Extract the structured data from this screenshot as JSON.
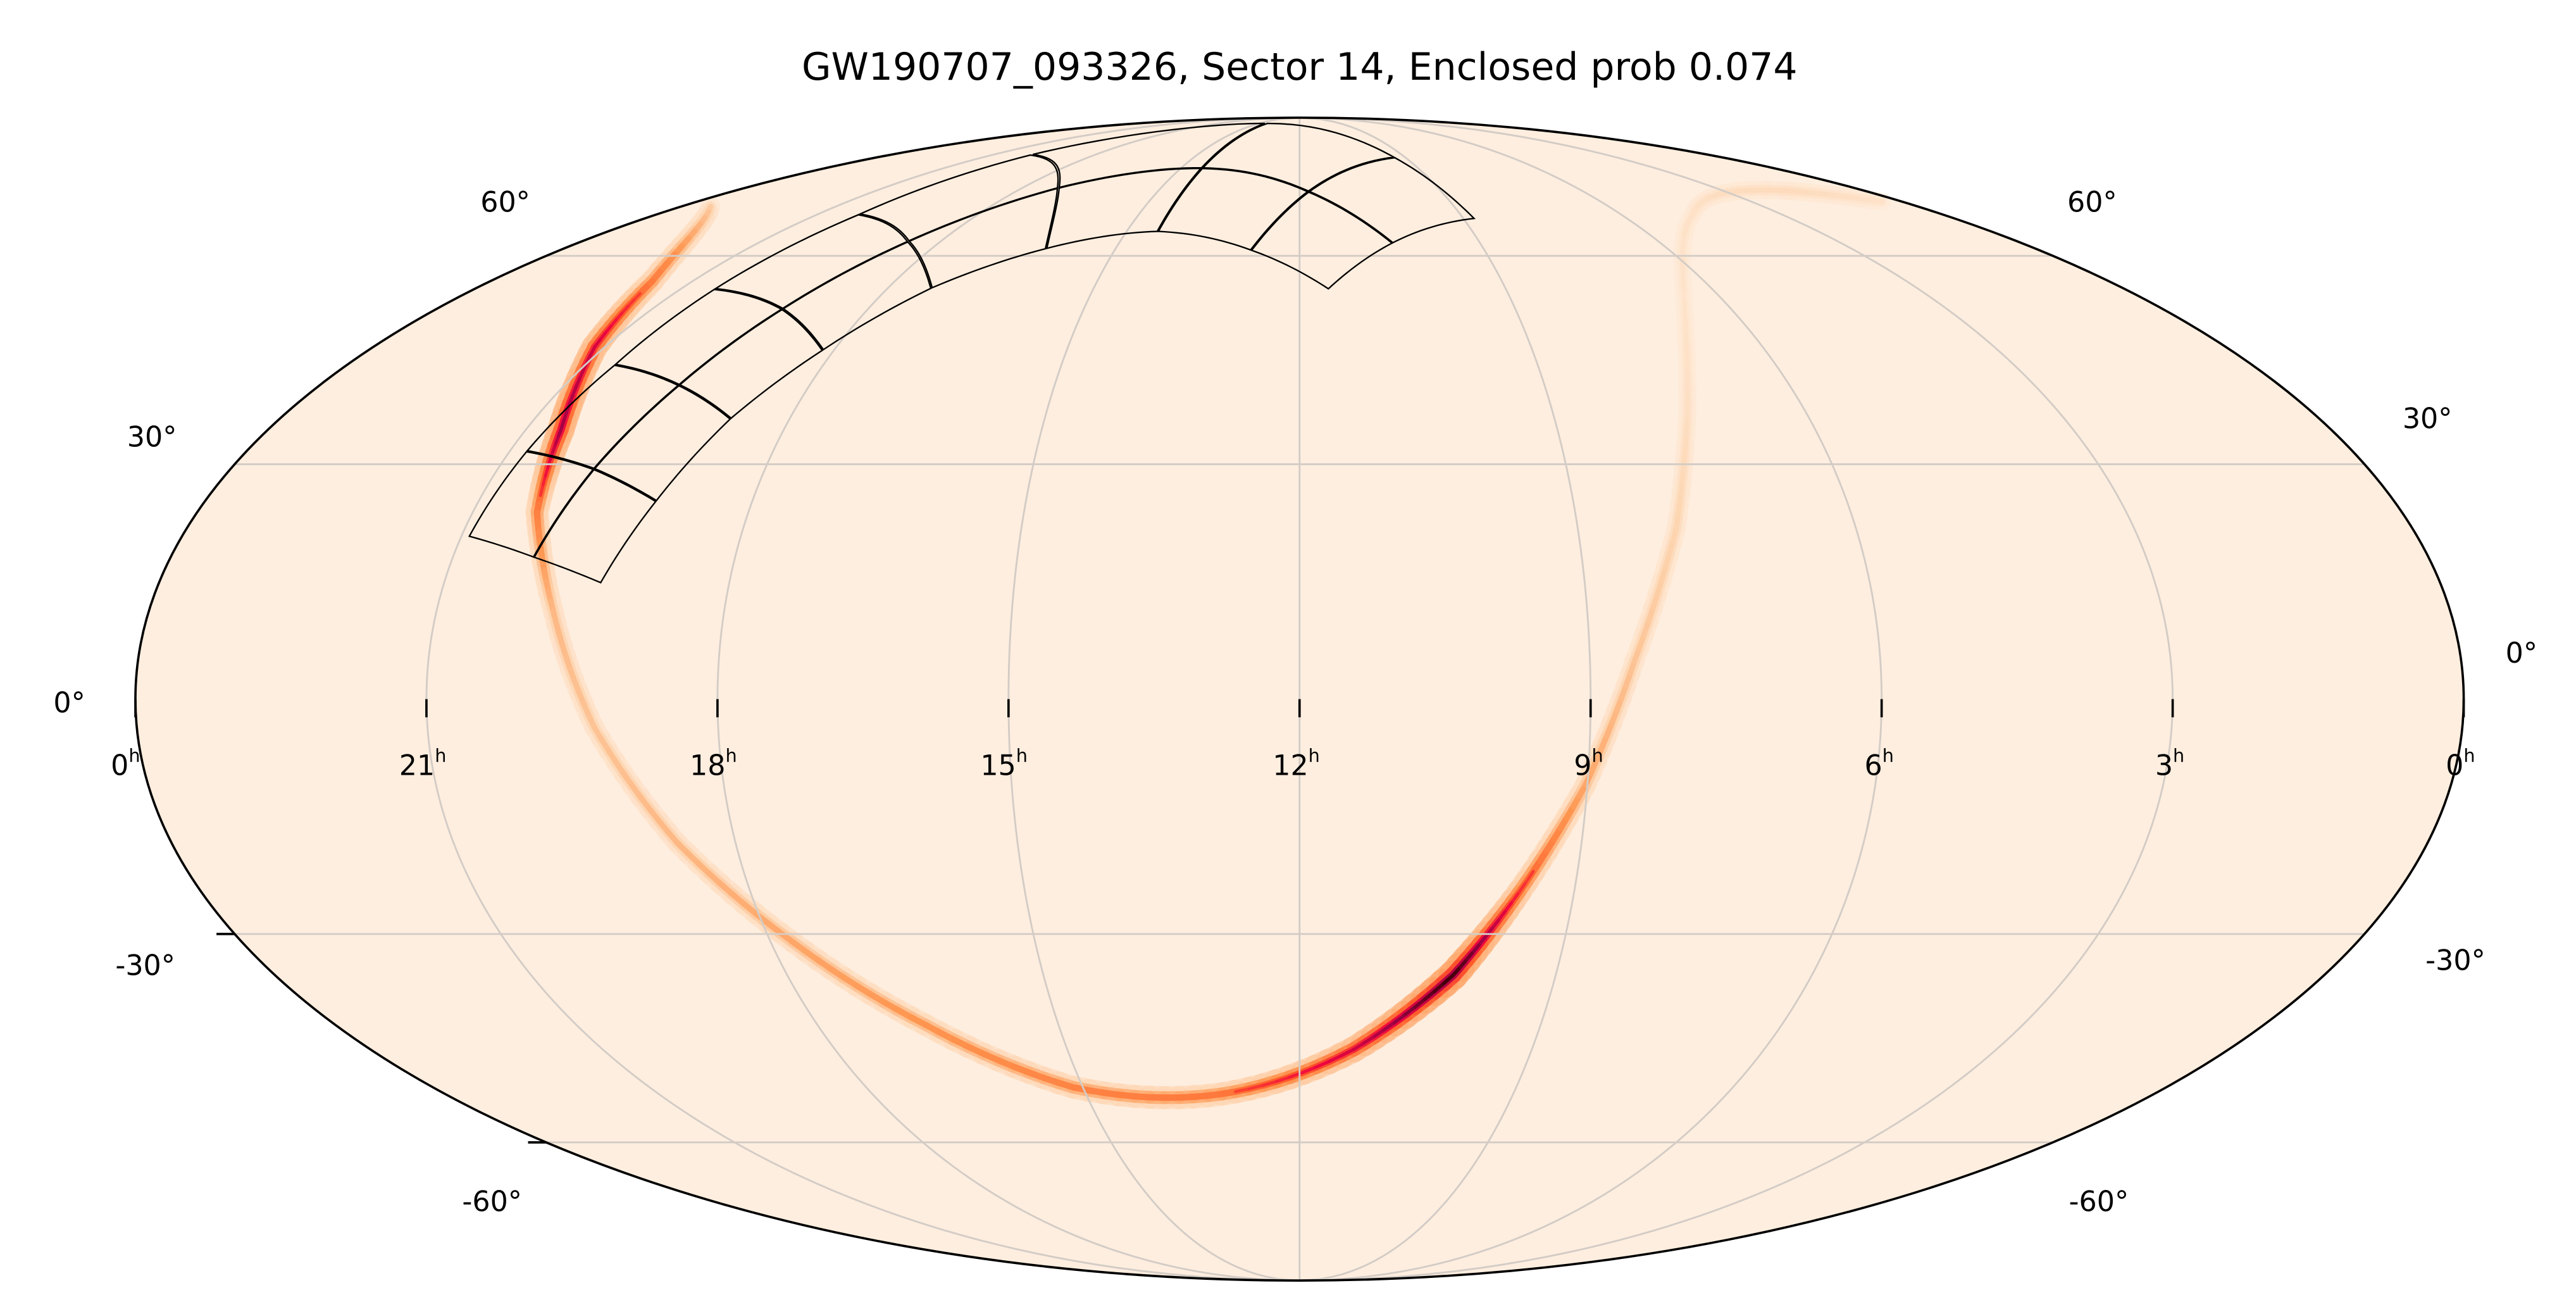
{
  "chart_data": {
    "type": "heatmap",
    "projection": "mollweide",
    "title": "GW190707_093326, Sector 14, Enclosed prob 0.074",
    "event": "GW190707_093326",
    "sector": 14,
    "enclosed_prob": 0.074,
    "grid": true,
    "ra_ticks": [
      {
        "ra_hours": 24,
        "label": "0",
        "unit": "h"
      },
      {
        "ra_hours": 21,
        "label": "21",
        "unit": "h"
      },
      {
        "ra_hours": 18,
        "label": "18",
        "unit": "h"
      },
      {
        "ra_hours": 15,
        "label": "15",
        "unit": "h"
      },
      {
        "ra_hours": 12,
        "label": "12",
        "unit": "h"
      },
      {
        "ra_hours": 9,
        "label": "9",
        "unit": "h"
      },
      {
        "ra_hours": 6,
        "label": "6",
        "unit": "h"
      },
      {
        "ra_hours": 3,
        "label": "3",
        "unit": "h"
      },
      {
        "ra_hours": 0,
        "label": "0",
        "unit": "h"
      }
    ],
    "dec_gridlines": [
      -60,
      -30,
      30,
      60
    ],
    "dec_tick_labels_left": [
      "60°",
      "30°",
      "0°",
      "-30°",
      "-60°"
    ],
    "dec_tick_labels_right": [
      "60°",
      "30°",
      "0°",
      "-30°",
      "-60°"
    ],
    "colors": {
      "background": "#feeedf",
      "grid": "#d3ccc6",
      "footprint": "#000000",
      "colormap": [
        "#feeedf",
        "#fdd3ad",
        "#fe9650",
        "#ff5a28",
        "#f0063f",
        "#9c0046",
        "#3a0005"
      ]
    },
    "probability_band": [
      {
        "ra": 23.42,
        "dec": 68.4,
        "p": 0.22
      },
      {
        "ra": 21.6,
        "dec": 56.0,
        "p": 0.5
      },
      {
        "ra": 21.13,
        "dec": 46.1,
        "p": 0.72
      },
      {
        "ra": 20.59,
        "dec": 34.6,
        "p": 0.82
      },
      {
        "ra": 20.3,
        "dec": 23.7,
        "p": 0.5
      },
      {
        "ra": 19.78,
        "dec": 11.0,
        "p": 0.3
      },
      {
        "ra": 19.28,
        "dec": -3.5,
        "p": 0.26
      },
      {
        "ra": 18.62,
        "dec": -18.15,
        "p": 0.3
      },
      {
        "ra": 17.75,
        "dec": -31.06,
        "p": 0.36
      },
      {
        "ra": 16.66,
        "dec": -42.33,
        "p": 0.42
      },
      {
        "ra": 15.13,
        "dec": -51.44,
        "p": 0.48
      },
      {
        "ra": 13.09,
        "dec": -52.43,
        "p": 0.52
      },
      {
        "ra": 11.3,
        "dec": -45.86,
        "p": 0.72
      },
      {
        "ra": 10.2,
        "dec": -35.5,
        "p": 1.0
      },
      {
        "ra": 9.6,
        "dec": -24.5,
        "p": 0.6
      },
      {
        "ra": 9.02,
        "dec": -10.8,
        "p": 0.36
      },
      {
        "ra": 8.54,
        "dec": 4.77,
        "p": 0.26
      },
      {
        "ra": 7.94,
        "dec": 21.55,
        "p": 0.2
      },
      {
        "ra": 7.41,
        "dec": 36.84,
        "p": 0.12
      },
      {
        "ra": 6.52,
        "dec": 53.43,
        "p": 0.08
      },
      {
        "ra": 4.69,
        "dec": 66.9,
        "p": 0.1
      },
      {
        "ra": 1.7,
        "dec": 71.4,
        "p": 0.15
      },
      {
        "ra": 0.41,
        "dec": 69.3,
        "p": 0.1
      }
    ],
    "tess_footprint_edges": [
      [
        [
          20.92,
          20.55
        ],
        [
          20.14,
          17.86
        ],
        [
          19.35,
          14.59
        ]
      ],
      [
        [
          20.81,
          31.74
        ],
        [
          19.92,
          29.37
        ],
        [
          19.05,
          25.14
        ]
      ],
      [
        [
          20.63,
          43.6
        ],
        [
          19.6,
          40.74
        ],
        [
          18.69,
          36.09
        ]
      ],
      [
        [
          20.51,
          54.76
        ],
        [
          19.19,
          51.72
        ],
        [
          18.14,
          45.66
        ]
      ],
      [
        [
          20.23,
          67.03
        ],
        [
          18.54,
          62.38
        ],
        [
          17.36,
          54.86
        ]
      ],
      [
        [
          19.89,
          78.8
        ],
        [
          17.22,
          71.9
        ],
        [
          16.13,
          61.13
        ]
      ],
      [
        [
          14.46,
          87.3
        ],
        [
          14.47,
          75.86
        ],
        [
          14.46,
          64.0
        ]
      ],
      [
        [
          9.29,
          78.2
        ],
        [
          11.81,
          71.2
        ],
        [
          12.79,
          60.87
        ]
      ],
      [
        [
          8.79,
          66.25
        ],
        [
          10.45,
          62.07
        ],
        [
          11.58,
          54.7
        ]
      ]
    ]
  }
}
